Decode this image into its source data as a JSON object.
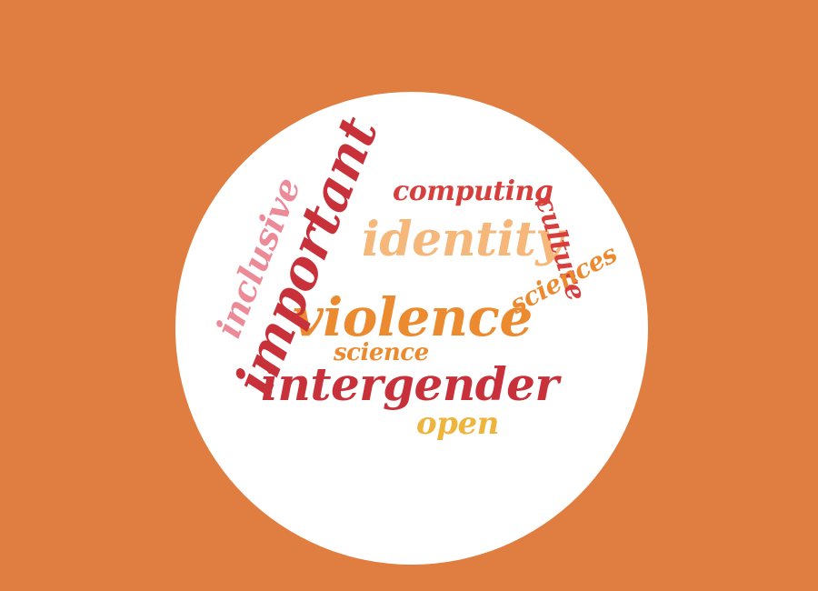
{
  "colors": {
    "background": "#e07d40",
    "circle": "#ffffff",
    "dark_red": "#c8313a",
    "red": "#d63f3b",
    "orange": "#eb8a2e",
    "peach": "#f5b87a",
    "pink": "#ec8a98",
    "yellow": "#efb43c"
  },
  "word_cloud": {
    "words": [
      {
        "text": "violence",
        "color": "#eb8a2e"
      },
      {
        "text": "intergender",
        "color": "#c8313a"
      },
      {
        "text": "important",
        "color": "#c8313a"
      },
      {
        "text": "identity",
        "color": "#f5b87a"
      },
      {
        "text": "computing",
        "color": "#d63f3b"
      },
      {
        "text": "culture",
        "color": "#d63f3b"
      },
      {
        "text": "inclusive",
        "color": "#ec8a98"
      },
      {
        "text": "science",
        "color": "#eb8a2e"
      },
      {
        "text": "sciences",
        "color": "#eb8a2e"
      },
      {
        "text": "open",
        "color": "#efb43c"
      }
    ]
  }
}
